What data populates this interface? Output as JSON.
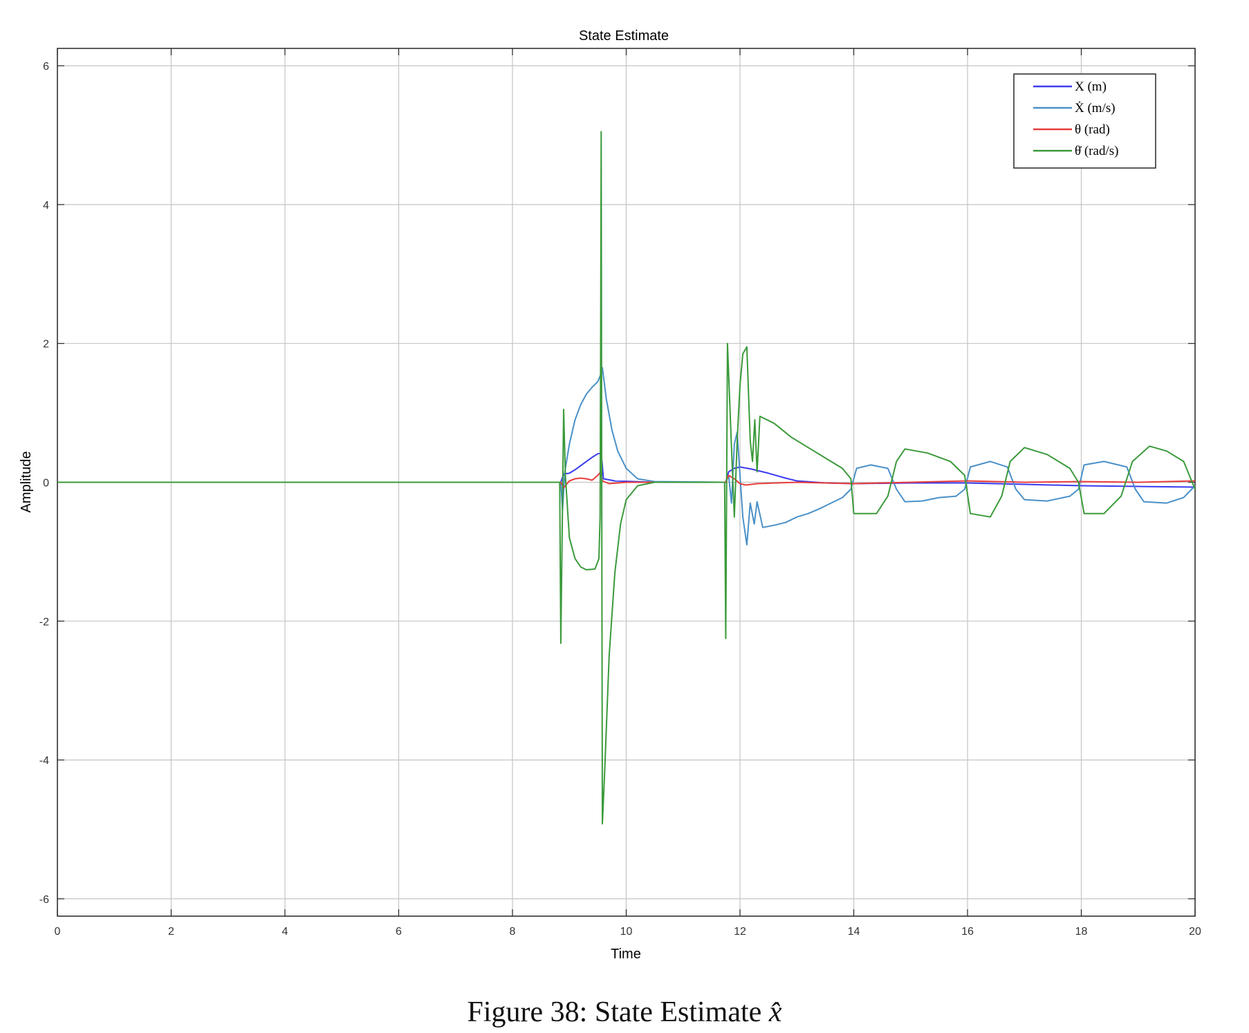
{
  "caption": {
    "prefix": "Figure 38:",
    "text": "State Estimate",
    "symbol": "x̂"
  },
  "chart_data": {
    "type": "line",
    "title": "State Estimate",
    "xlabel": "Time",
    "ylabel": "Amplitude",
    "xlim": [
      0,
      20
    ],
    "ylim": [
      -6.25,
      6.25
    ],
    "xticks": [
      0,
      2,
      4,
      6,
      8,
      10,
      12,
      14,
      16,
      18,
      20
    ],
    "yticks": [
      -6,
      -4,
      -2,
      0,
      2,
      4,
      6
    ],
    "grid": true,
    "legend_position": "top-right",
    "series": [
      {
        "name": "X (m)",
        "color": "#3a3af0",
        "points": [
          [
            0,
            0
          ],
          [
            8.85,
            0
          ],
          [
            8.9,
            0.12
          ],
          [
            9.0,
            0.13
          ],
          [
            9.1,
            0.18
          ],
          [
            9.2,
            0.24
          ],
          [
            9.3,
            0.3
          ],
          [
            9.4,
            0.36
          ],
          [
            9.5,
            0.41
          ],
          [
            9.56,
            0.42
          ],
          [
            9.6,
            0.05
          ],
          [
            9.8,
            0.02
          ],
          [
            10.5,
            0
          ],
          [
            11.75,
            0
          ],
          [
            11.8,
            0.15
          ],
          [
            11.9,
            0.2
          ],
          [
            12.0,
            0.22
          ],
          [
            12.2,
            0.19
          ],
          [
            12.5,
            0.13
          ],
          [
            12.8,
            0.06
          ],
          [
            13.0,
            0.02
          ],
          [
            13.5,
            -0.01
          ],
          [
            14.0,
            -0.02
          ],
          [
            15.0,
            -0.01
          ],
          [
            16.0,
            -0.01
          ],
          [
            17.0,
            -0.03
          ],
          [
            18.0,
            -0.05
          ],
          [
            19.0,
            -0.06
          ],
          [
            20.0,
            -0.07
          ]
        ]
      },
      {
        "name": "Ẋ (m/s)",
        "color": "#4a90c8",
        "points": [
          [
            0,
            0
          ],
          [
            8.85,
            0
          ],
          [
            8.88,
            -0.4
          ],
          [
            8.92,
            0.15
          ],
          [
            9.0,
            0.55
          ],
          [
            9.1,
            0.9
          ],
          [
            9.2,
            1.12
          ],
          [
            9.3,
            1.27
          ],
          [
            9.4,
            1.37
          ],
          [
            9.5,
            1.45
          ],
          [
            9.55,
            1.55
          ],
          [
            9.58,
            1.65
          ],
          [
            9.65,
            1.2
          ],
          [
            9.75,
            0.75
          ],
          [
            9.85,
            0.45
          ],
          [
            10.0,
            0.2
          ],
          [
            10.2,
            0.05
          ],
          [
            10.5,
            0.01
          ],
          [
            11.75,
            0
          ],
          [
            11.8,
            0.1
          ],
          [
            11.85,
            -0.3
          ],
          [
            11.9,
            0.55
          ],
          [
            11.95,
            0.72
          ],
          [
            12.0,
            0.1
          ],
          [
            12.05,
            -0.5
          ],
          [
            12.12,
            -0.9
          ],
          [
            12.18,
            -0.3
          ],
          [
            12.25,
            -0.6
          ],
          [
            12.3,
            -0.28
          ],
          [
            12.4,
            -0.65
          ],
          [
            12.6,
            -0.62
          ],
          [
            12.8,
            -0.58
          ],
          [
            13.0,
            -0.5
          ],
          [
            13.2,
            -0.45
          ],
          [
            13.4,
            -0.38
          ],
          [
            13.6,
            -0.3
          ],
          [
            13.8,
            -0.22
          ],
          [
            13.95,
            -0.1
          ],
          [
            14.05,
            0.2
          ],
          [
            14.3,
            0.25
          ],
          [
            14.6,
            0.2
          ],
          [
            14.75,
            -0.1
          ],
          [
            14.9,
            -0.28
          ],
          [
            15.2,
            -0.27
          ],
          [
            15.5,
            -0.22
          ],
          [
            15.8,
            -0.2
          ],
          [
            15.95,
            -0.1
          ],
          [
            16.05,
            0.22
          ],
          [
            16.4,
            0.3
          ],
          [
            16.7,
            0.22
          ],
          [
            16.85,
            -0.1
          ],
          [
            17.0,
            -0.25
          ],
          [
            17.4,
            -0.27
          ],
          [
            17.8,
            -0.2
          ],
          [
            17.95,
            -0.1
          ],
          [
            18.05,
            0.25
          ],
          [
            18.4,
            0.3
          ],
          [
            18.8,
            0.22
          ],
          [
            18.95,
            -0.1
          ],
          [
            19.1,
            -0.28
          ],
          [
            19.5,
            -0.3
          ],
          [
            19.8,
            -0.22
          ],
          [
            20.0,
            -0.05
          ]
        ]
      },
      {
        "name": "θ (rad)",
        "color": "#e83c3c",
        "points": [
          [
            0,
            0
          ],
          [
            8.85,
            0
          ],
          [
            8.9,
            -0.08
          ],
          [
            9.0,
            0.02
          ],
          [
            9.1,
            0.05
          ],
          [
            9.2,
            0.06
          ],
          [
            9.3,
            0.05
          ],
          [
            9.4,
            0.03
          ],
          [
            9.5,
            0.1
          ],
          [
            9.55,
            0.15
          ],
          [
            9.58,
            0.02
          ],
          [
            9.7,
            -0.02
          ],
          [
            10.0,
            0
          ],
          [
            11.75,
            0
          ],
          [
            11.8,
            0.1
          ],
          [
            11.9,
            0.05
          ],
          [
            12.0,
            -0.02
          ],
          [
            12.1,
            -0.04
          ],
          [
            12.3,
            -0.02
          ],
          [
            13.0,
            0
          ],
          [
            14.0,
            -0.02
          ],
          [
            15.0,
            0
          ],
          [
            16.0,
            0.02
          ],
          [
            17.0,
            0
          ],
          [
            18.0,
            0.01
          ],
          [
            19.0,
            0
          ],
          [
            20.0,
            0.02
          ]
        ]
      },
      {
        "name": "θ̇ (rad/s)",
        "color": "#3a9a3a",
        "points": [
          [
            0,
            0
          ],
          [
            8.83,
            0
          ],
          [
            8.85,
            -2.32
          ],
          [
            8.88,
            -0.3
          ],
          [
            8.9,
            1.05
          ],
          [
            8.93,
            0.1
          ],
          [
            9.0,
            -0.8
          ],
          [
            9.1,
            -1.1
          ],
          [
            9.2,
            -1.22
          ],
          [
            9.3,
            -1.26
          ],
          [
            9.45,
            -1.25
          ],
          [
            9.52,
            -1.1
          ],
          [
            9.54,
            -0.5
          ],
          [
            9.55,
            2.0
          ],
          [
            9.56,
            5.05
          ],
          [
            9.57,
            -0.2
          ],
          [
            9.58,
            -4.92
          ],
          [
            9.62,
            -4.2
          ],
          [
            9.7,
            -2.5
          ],
          [
            9.8,
            -1.3
          ],
          [
            9.9,
            -0.6
          ],
          [
            10.0,
            -0.25
          ],
          [
            10.2,
            -0.05
          ],
          [
            10.5,
            0
          ],
          [
            11.73,
            0
          ],
          [
            11.75,
            -2.25
          ],
          [
            11.78,
            2.0
          ],
          [
            11.85,
            0.5
          ],
          [
            11.9,
            -0.5
          ],
          [
            11.95,
            0.6
          ],
          [
            12.0,
            1.4
          ],
          [
            12.05,
            1.85
          ],
          [
            12.12,
            1.95
          ],
          [
            12.18,
            0.6
          ],
          [
            12.22,
            0.3
          ],
          [
            12.26,
            0.9
          ],
          [
            12.3,
            0.15
          ],
          [
            12.35,
            0.95
          ],
          [
            12.6,
            0.85
          ],
          [
            12.9,
            0.65
          ],
          [
            13.2,
            0.5
          ],
          [
            13.5,
            0.35
          ],
          [
            13.8,
            0.2
          ],
          [
            13.95,
            0.05
          ],
          [
            14.0,
            -0.45
          ],
          [
            14.4,
            -0.45
          ],
          [
            14.6,
            -0.2
          ],
          [
            14.75,
            0.3
          ],
          [
            14.9,
            0.48
          ],
          [
            15.3,
            0.42
          ],
          [
            15.7,
            0.3
          ],
          [
            15.95,
            0.1
          ],
          [
            16.05,
            -0.45
          ],
          [
            16.4,
            -0.5
          ],
          [
            16.6,
            -0.2
          ],
          [
            16.75,
            0.3
          ],
          [
            17.0,
            0.5
          ],
          [
            17.4,
            0.4
          ],
          [
            17.8,
            0.2
          ],
          [
            17.95,
            0
          ],
          [
            18.05,
            -0.45
          ],
          [
            18.4,
            -0.45
          ],
          [
            18.7,
            -0.2
          ],
          [
            18.9,
            0.3
          ],
          [
            19.2,
            0.52
          ],
          [
            19.5,
            0.45
          ],
          [
            19.8,
            0.3
          ],
          [
            20.0,
            -0.1
          ]
        ]
      }
    ]
  }
}
